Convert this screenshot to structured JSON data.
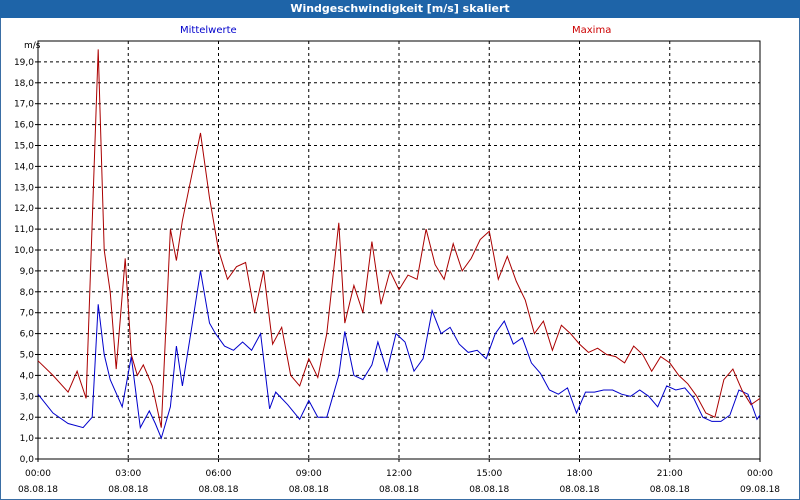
{
  "window": {
    "title": "Windgeschwindigkeit [m/s] skaliert"
  },
  "colors": {
    "mean": "#0000cc",
    "max": "#aa0000",
    "title_bar": "#1e64a8"
  },
  "chart_data": {
    "type": "line",
    "title": "Windgeschwindigkeit [m/s] skaliert",
    "ylabel": "m/s",
    "xlabel": "",
    "ylim": [
      0,
      20
    ],
    "y_ticks": [
      "0,0",
      "1,0",
      "2,0",
      "3,0",
      "4,0",
      "5,0",
      "6,0",
      "7,0",
      "8,0",
      "9,0",
      "10,0",
      "11,0",
      "12,0",
      "13,0",
      "14,0",
      "15,0",
      "16,0",
      "17,0",
      "18,0",
      "19,0"
    ],
    "x_ticks": [
      {
        "time": "00:00",
        "date": "08.08.18"
      },
      {
        "time": "03:00",
        "date": "08.08.18"
      },
      {
        "time": "06:00",
        "date": "08.08.18"
      },
      {
        "time": "09:00",
        "date": "08.08.18"
      },
      {
        "time": "12:00",
        "date": "08.08.18"
      },
      {
        "time": "15:00",
        "date": "08.08.18"
      },
      {
        "time": "18:00",
        "date": "08.08.18"
      },
      {
        "time": "21:00",
        "date": "08.08.18"
      },
      {
        "time": "00:00",
        "date": "09.08.18"
      }
    ],
    "x_unit": "hours",
    "grid": true,
    "series": [
      {
        "name": "Mittelwerte",
        "color": "#0000cc",
        "x": [
          0,
          0.5,
          1.0,
          1.5,
          1.8,
          2.0,
          2.2,
          2.4,
          2.8,
          3.1,
          3.4,
          3.7,
          3.9,
          4.1,
          4.4,
          4.6,
          4.8,
          5.1,
          5.4,
          5.7,
          5.9,
          6.2,
          6.5,
          6.8,
          7.1,
          7.4,
          7.7,
          7.9,
          8.3,
          8.7,
          9.0,
          9.3,
          9.6,
          10.0,
          10.2,
          10.5,
          10.8,
          11.1,
          11.3,
          11.6,
          11.9,
          12.2,
          12.5,
          12.8,
          13.1,
          13.4,
          13.7,
          14.0,
          14.3,
          14.6,
          14.9,
          15.2,
          15.5,
          15.8,
          16.1,
          16.4,
          16.7,
          17.0,
          17.3,
          17.6,
          17.9,
          18.2,
          18.5,
          18.8,
          19.1,
          19.4,
          19.7,
          20.0,
          20.3,
          20.6,
          20.9,
          21.2,
          21.5,
          21.8,
          22.1,
          22.4,
          22.7,
          23.0,
          23.3,
          23.6,
          23.9,
          24.0
        ],
        "values": [
          3.1,
          2.2,
          1.7,
          1.5,
          2.0,
          7.4,
          5.0,
          3.8,
          2.5,
          4.9,
          1.5,
          2.3,
          1.7,
          1.0,
          2.5,
          5.4,
          3.5,
          6.2,
          9.0,
          6.5,
          6.0,
          5.4,
          5.2,
          5.6,
          5.2,
          6.0,
          2.4,
          3.2,
          2.6,
          1.9,
          2.8,
          2.0,
          2.0,
          4.0,
          6.1,
          4.0,
          3.8,
          4.5,
          5.6,
          4.2,
          6.0,
          5.6,
          4.2,
          4.8,
          7.1,
          6.0,
          6.3,
          5.5,
          5.1,
          5.2,
          4.8,
          6.0,
          6.6,
          5.5,
          5.8,
          4.6,
          4.1,
          3.3,
          3.1,
          3.4,
          2.2,
          3.2,
          3.2,
          3.3,
          3.3,
          3.1,
          3.0,
          3.3,
          3.0,
          2.5,
          3.5,
          3.3,
          3.4,
          2.9,
          2.0,
          1.8,
          1.8,
          2.1,
          3.3,
          3.1,
          1.9,
          2.1
        ]
      },
      {
        "name": "Maxima",
        "color": "#aa0000",
        "x": [
          0,
          0.5,
          1.0,
          1.3,
          1.6,
          2.0,
          2.2,
          2.4,
          2.6,
          2.9,
          3.1,
          3.3,
          3.5,
          3.8,
          4.1,
          4.4,
          4.6,
          4.8,
          5.1,
          5.4,
          5.7,
          6.0,
          6.3,
          6.6,
          6.9,
          7.2,
          7.5,
          7.8,
          8.1,
          8.4,
          8.7,
          9.0,
          9.3,
          9.6,
          10.0,
          10.2,
          10.5,
          10.8,
          11.1,
          11.4,
          11.7,
          12.0,
          12.3,
          12.6,
          12.9,
          13.2,
          13.5,
          13.8,
          14.1,
          14.4,
          14.7,
          15.0,
          15.3,
          15.6,
          15.9,
          16.2,
          16.5,
          16.8,
          17.1,
          17.4,
          17.7,
          18.0,
          18.3,
          18.6,
          18.9,
          19.2,
          19.5,
          19.8,
          20.1,
          20.4,
          20.7,
          21.0,
          21.3,
          21.6,
          21.9,
          22.2,
          22.5,
          22.8,
          23.1,
          23.4,
          23.7,
          24.0
        ],
        "values": [
          4.7,
          4.0,
          3.2,
          4.2,
          2.9,
          19.6,
          10.0,
          8.0,
          4.3,
          9.6,
          5.0,
          4.0,
          4.5,
          3.5,
          1.5,
          11.0,
          9.5,
          11.4,
          13.5,
          15.6,
          12.5,
          10.0,
          8.6,
          9.2,
          9.4,
          7.0,
          9.0,
          5.5,
          6.3,
          4.0,
          3.5,
          4.8,
          3.9,
          6.0,
          11.3,
          6.5,
          8.3,
          7.0,
          10.4,
          7.4,
          9.0,
          8.1,
          8.8,
          8.6,
          11.0,
          9.3,
          8.6,
          10.3,
          9.0,
          9.6,
          10.5,
          10.9,
          8.6,
          9.7,
          8.5,
          7.6,
          6.0,
          6.6,
          5.2,
          6.4,
          6.0,
          5.5,
          5.1,
          5.3,
          5.0,
          4.9,
          4.6,
          5.4,
          5.0,
          4.2,
          4.9,
          4.6,
          4.0,
          3.6,
          3.0,
          2.2,
          2.0,
          3.8,
          4.3,
          3.3,
          2.6,
          2.9
        ]
      }
    ]
  }
}
